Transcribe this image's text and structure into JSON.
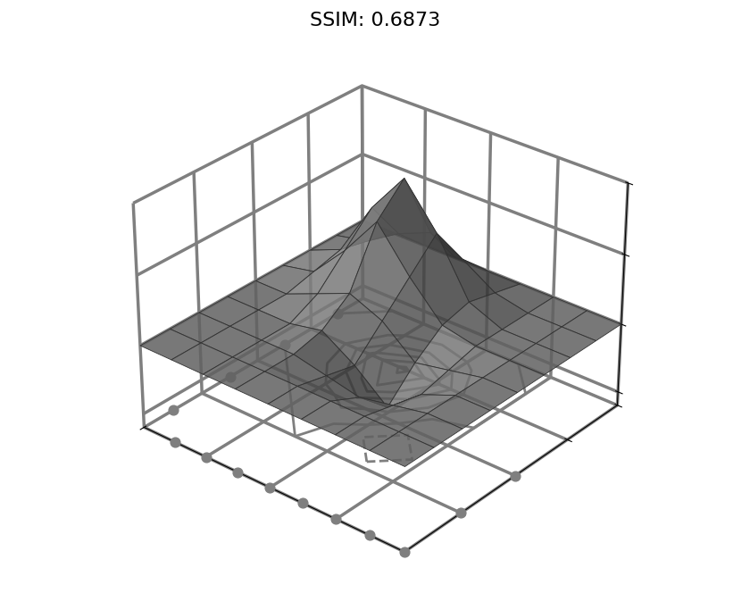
{
  "chart_data": {
    "type": "surface",
    "title": "SSIM: 0.6873",
    "x": [
      -4,
      -3,
      -2,
      -1,
      0,
      1,
      2,
      3,
      4
    ],
    "y": [
      -4,
      -3,
      -2,
      -1,
      0,
      1,
      2,
      3,
      4
    ],
    "z": [
      [
        0,
        0,
        0,
        0,
        0,
        0,
        0,
        0,
        0
      ],
      [
        0,
        0,
        0,
        0,
        0,
        0,
        0,
        0,
        0
      ],
      [
        0,
        0,
        0,
        0,
        -0.5,
        -1,
        -0.5,
        0,
        0
      ],
      [
        0,
        0,
        0,
        0.5,
        -1,
        -3,
        -1,
        0,
        0
      ],
      [
        0,
        0,
        1,
        2,
        1,
        -1,
        -0.5,
        0,
        0
      ],
      [
        0,
        0.5,
        3,
        6,
        3,
        0.5,
        0,
        0,
        0
      ],
      [
        0,
        1,
        5,
        8,
        5,
        1,
        0,
        0,
        0
      ],
      [
        0,
        0.5,
        2,
        3,
        2,
        0.5,
        0,
        0,
        0
      ],
      [
        0,
        0,
        0,
        0,
        0,
        0,
        0,
        0,
        0
      ]
    ],
    "points": {
      "x": [
        -4,
        -4,
        -4,
        -4,
        -3,
        -2,
        -1,
        0,
        1,
        2,
        3,
        4,
        4,
        4
      ],
      "y": [
        3,
        1,
        -1,
        -3,
        -4,
        -4,
        -4,
        -4,
        -4,
        -4,
        -4,
        -4,
        -2,
        0
      ],
      "z": [
        -6,
        -6,
        -6,
        -6,
        -6,
        -6,
        -6,
        -6,
        -6,
        -6,
        -6,
        -6,
        -6,
        -6
      ]
    },
    "xlim": [
      -4,
      4
    ],
    "ylim": [
      -4,
      4
    ],
    "zlim": [
      -6,
      10
    ],
    "xticks": [
      -4,
      -2,
      0,
      2,
      4
    ],
    "yticks": [
      -4,
      -2,
      0,
      2,
      4
    ],
    "zticks": [
      -5,
      0,
      5,
      10
    ],
    "color": "#7f7f7f",
    "grid": true,
    "tick_labels": false
  }
}
